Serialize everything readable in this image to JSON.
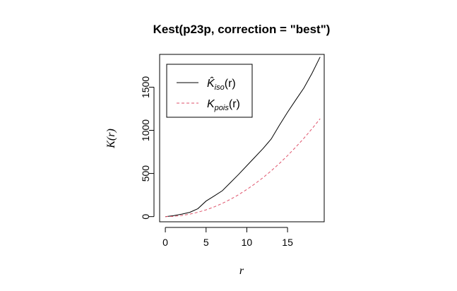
{
  "chart_data": {
    "type": "line",
    "title": "Kest(p23p, correction = \"best\")",
    "xlabel": "r",
    "ylabel": "K(r)",
    "xlim": [
      -0.7,
      19.5
    ],
    "ylim": [
      -60,
      1880
    ],
    "xticks": [
      0,
      5,
      10,
      15
    ],
    "yticks": [
      0,
      500,
      1000,
      1500
    ],
    "grid": false,
    "legend_position": "top-left",
    "series": [
      {
        "name": "K̂iso(r)",
        "legend_main": "K̂",
        "legend_sub": "iso",
        "legend_arg": "(r)",
        "color": "#000000",
        "dash": "solid",
        "x": [
          0,
          1,
          2,
          3,
          4,
          5,
          6,
          7,
          8,
          9,
          10,
          11,
          12,
          13,
          14,
          15,
          16,
          17,
          18,
          19
        ],
        "y": [
          0,
          10,
          28,
          50,
          92,
          180,
          240,
          300,
          395,
          490,
          590,
          690,
          790,
          900,
          1060,
          1210,
          1350,
          1490,
          1660,
          1850
        ]
      },
      {
        "name": "Kpois(r)",
        "legend_main": "K",
        "legend_sub": "pois",
        "legend_arg": "(r)",
        "color": "#df536b",
        "dash": "dashed",
        "x": [
          0,
          1,
          2,
          3,
          4,
          5,
          6,
          7,
          8,
          9,
          10,
          11,
          12,
          13,
          14,
          15,
          16,
          17,
          18,
          19
        ],
        "y": [
          0,
          3.1,
          12.6,
          28.3,
          50.3,
          78.5,
          113.1,
          153.9,
          201.1,
          254.5,
          314.2,
          380.1,
          452.4,
          530.9,
          615.8,
          706.9,
          804.2,
          907.9,
          1017.9,
          1134.1
        ]
      }
    ]
  }
}
